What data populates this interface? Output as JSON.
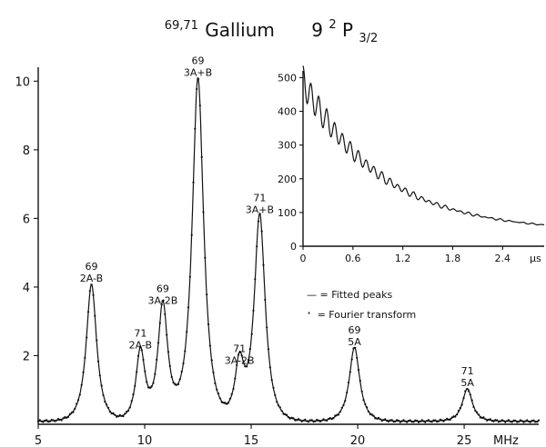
{
  "chart_data": [
    {
      "type": "line",
      "title": {
        "isotopes": "69,71",
        "element": "Gallium",
        "n": "9",
        "sup": "2",
        "letter": "P",
        "sub": "3/2"
      },
      "xlabel": "MHz",
      "ylabel": "",
      "xlim": [
        5,
        28.5
      ],
      "ylim": [
        0,
        10.3
      ],
      "x_ticks": [
        5,
        10,
        15,
        20,
        25
      ],
      "y_ticks": [
        2,
        4,
        6,
        8,
        10
      ],
      "peaks": [
        {
          "isotope": "69",
          "line": "2A-B",
          "x": 7.5,
          "y": 4.0,
          "width": 0.38
        },
        {
          "isotope": "71",
          "line": "2A-B",
          "x": 9.8,
          "y": 2.05,
          "width": 0.33
        },
        {
          "isotope": "69",
          "line": "3A-2B",
          "x": 10.85,
          "y": 3.35,
          "width": 0.36
        },
        {
          "isotope": "69",
          "line": "3A+B",
          "x": 12.5,
          "y": 10.0,
          "width": 0.42
        },
        {
          "isotope": "71",
          "line": "3A-2B",
          "x": 14.45,
          "y": 1.6,
          "width": 0.33
        },
        {
          "isotope": "71",
          "line": "3A+B",
          "x": 15.4,
          "y": 6.0,
          "width": 0.4
        },
        {
          "isotope": "69",
          "line": "5A",
          "x": 19.85,
          "y": 2.15,
          "width": 0.38
        },
        {
          "isotope": "71",
          "line": "5A",
          "x": 25.15,
          "y": 0.95,
          "width": 0.36
        }
      ],
      "legend": [
        {
          "symbol": "—",
          "label": "= Fitted  peaks"
        },
        {
          "symbol": "·",
          "label": "= Fourier transform"
        }
      ]
    },
    {
      "type": "line",
      "xlabel": "μs",
      "ylabel": "",
      "xlim": [
        0,
        2.9
      ],
      "ylim": [
        0,
        520
      ],
      "x_ticks": [
        0,
        0.6,
        1.2,
        1.8,
        2.4
      ],
      "x_tick_labels": [
        "0",
        "0.6",
        "1.2",
        "1.8",
        "2.4"
      ],
      "y_ticks": [
        0,
        100,
        200,
        300,
        400,
        500
      ],
      "decay": {
        "amplitude": 445,
        "tau": 0.95,
        "offset": 42,
        "osc_amplitude": 48,
        "osc_period": 0.095,
        "osc_tau": 0.7
      },
      "samples": 420
    }
  ]
}
